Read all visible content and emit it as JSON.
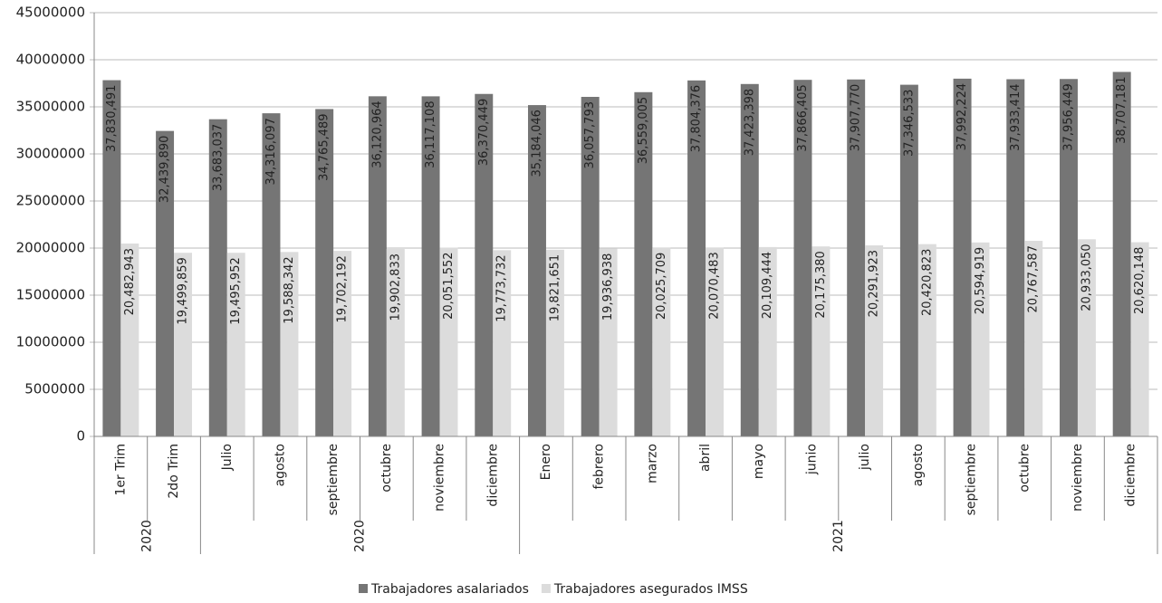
{
  "chart_data": {
    "type": "grouped_bar",
    "groups": [
      {
        "label": "2020",
        "categories": [
          "1er Trim",
          "2do Trim"
        ]
      },
      {
        "label": "2020",
        "categories": [
          "Julio",
          "agosto",
          "septiembre",
          "octubre",
          "noviembre",
          "diciembre"
        ]
      },
      {
        "label": "2021",
        "categories": [
          "Enero",
          "febrero",
          "marzo",
          "abril",
          "mayo",
          "junio",
          "julio",
          "agosto",
          "septiembre",
          "octubre",
          "noviembre",
          "diciembre"
        ]
      }
    ],
    "series": [
      {
        "name": "Trabajadores asalariados",
        "color": "#757575",
        "values": [
          37830491,
          32439890,
          33683037,
          34316097,
          34765489,
          36120964,
          36117108,
          36370449,
          35184046,
          36057793,
          36559005,
          37804376,
          37423398,
          37866405,
          37907770,
          37346533,
          37992224,
          37933414,
          37956449,
          38707181
        ],
        "value_labels": [
          "37,830,491",
          "32,439,890",
          "33,683,037",
          "34,316,097",
          "34,765,489",
          "36,120,964",
          "36,117,108",
          "36,370,449",
          "35,184,046",
          "36,057,793",
          "36,559,005",
          "37,804,376",
          "37,423,398",
          "37,866,405",
          "37,907,770",
          "37,346,533",
          "37,992,224",
          "37,933,414",
          "37,956,449",
          "38,707,181"
        ]
      },
      {
        "name": "Trabajadores asegurados IMSS",
        "color": "#dcdcdc",
        "values": [
          20482943,
          19499859,
          19495952,
          19588342,
          19702192,
          19902833,
          20051552,
          19773732,
          19821651,
          19936938,
          20025709,
          20070483,
          20109444,
          20175380,
          20291923,
          20420823,
          20594919,
          20767587,
          20933050,
          20620148
        ],
        "value_labels": [
          "20,482,943",
          "19,499,859",
          "19,495,952",
          "19,588,342",
          "19,702,192",
          "19,902,833",
          "20,051,552",
          "19,773,732",
          "19,821,651",
          "19,936,938",
          "20,025,709",
          "20,070,483",
          "20,109,444",
          "20,175,380",
          "20,291,923",
          "20,420,823",
          "20,594,919",
          "20,767,587",
          "20,933,050",
          "20,620,148"
        ]
      }
    ],
    "ylim": [
      0,
      45000000
    ],
    "yticks": [
      0,
      5000000,
      10000000,
      15000000,
      20000000,
      25000000,
      30000000,
      35000000,
      40000000,
      45000000
    ],
    "grid": true,
    "legend": "bottom"
  }
}
